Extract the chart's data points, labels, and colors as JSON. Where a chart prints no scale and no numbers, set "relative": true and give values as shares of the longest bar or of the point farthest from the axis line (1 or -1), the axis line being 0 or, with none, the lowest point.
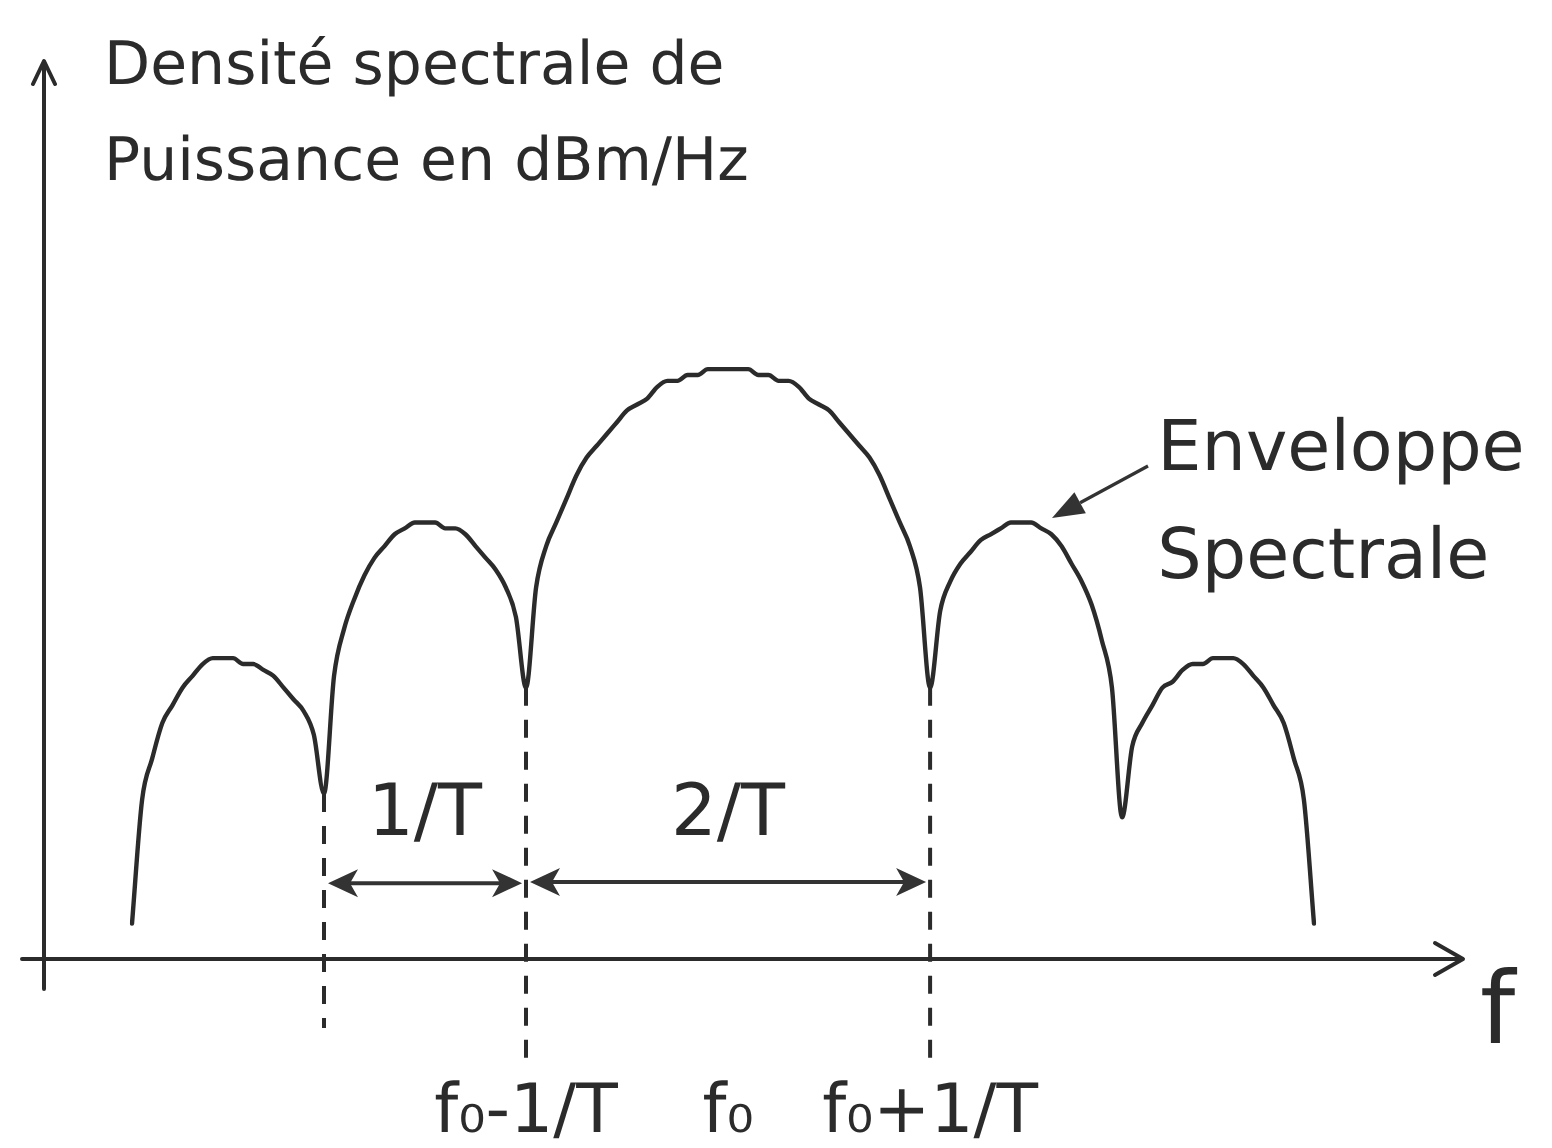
{
  "chart_data": {
    "type": "line",
    "xlabel": "f",
    "ylabel": "Densité spectrale de Puissance en dBm/Hz",
    "relative": true,
    "categories": [
      null,
      null,
      null,
      null,
      null,
      null,
      null,
      null,
      null,
      null,
      null,
      null,
      null,
      null,
      null,
      null,
      null,
      null,
      null,
      null,
      null,
      null,
      null,
      null,
      null,
      null,
      null,
      null,
      null,
      null,
      null,
      null,
      null,
      null,
      null,
      null,
      null,
      null,
      null,
      "f₀-1/T",
      null,
      null,
      null,
      null,
      null,
      null,
      null,
      null,
      null,
      null,
      null,
      null,
      null,
      null,
      null,
      null,
      null,
      null,
      null,
      "f₀",
      null,
      null,
      null,
      null,
      null,
      null,
      null,
      null,
      null,
      null,
      null,
      null,
      null,
      null,
      null,
      null,
      null,
      null,
      null,
      "f₀+1/T",
      null,
      null,
      null,
      null,
      null,
      null,
      null,
      null,
      null,
      null,
      null,
      null,
      null,
      null,
      null,
      null,
      null,
      null,
      null,
      null,
      null,
      null,
      null,
      null,
      null,
      null,
      null,
      null,
      null,
      null,
      null,
      null,
      null,
      null,
      null,
      null,
      null,
      null
    ],
    "series": [
      {
        "name": "Enveloppe Spectrale",
        "color": "#2b2b2b",
        "values": [
          0.06,
          0.27,
          0.34,
          0.4,
          0.43,
          0.46,
          0.48,
          0.5,
          0.51,
          0.51,
          0.51,
          0.5,
          0.5,
          0.49,
          0.48,
          0.46,
          0.44,
          0.42,
          0.38,
          0.28,
          0.48,
          0.56,
          0.61,
          0.65,
          0.68,
          0.7,
          0.72,
          0.73,
          0.74,
          0.74,
          0.74,
          0.73,
          0.73,
          0.72,
          0.7,
          0.68,
          0.66,
          0.63,
          0.58,
          0.46,
          0.63,
          0.7,
          0.74,
          0.78,
          0.82,
          0.85,
          0.87,
          0.89,
          0.91,
          0.93,
          0.94,
          0.95,
          0.97,
          0.98,
          0.98,
          0.99,
          0.99,
          1.0,
          1.0,
          1.0,
          1.0,
          1.0,
          0.99,
          0.99,
          0.98,
          0.98,
          0.97,
          0.95,
          0.94,
          0.93,
          0.91,
          0.89,
          0.87,
          0.85,
          0.82,
          0.78,
          0.74,
          0.7,
          0.63,
          0.46,
          0.59,
          0.64,
          0.67,
          0.69,
          0.71,
          0.72,
          0.73,
          0.74,
          0.74,
          0.74,
          0.73,
          0.72,
          0.7,
          0.67,
          0.64,
          0.6,
          0.54,
          0.46,
          0.24,
          0.36,
          0.4,
          0.43,
          0.46,
          0.47,
          0.49,
          0.5,
          0.5,
          0.51,
          0.51,
          0.51,
          0.5,
          0.48,
          0.46,
          0.43,
          0.4,
          0.34,
          0.27,
          0.06
        ]
      }
    ],
    "ref_lines": [
      {
        "axis": "x",
        "value": "f₀-1/T",
        "color": "#2b2b2b",
        "line_style": "dashed"
      },
      {
        "axis": "x",
        "value": "f₀+1/T",
        "color": "#2b2b2b",
        "line_style": "dashed"
      }
    ],
    "annotations": [
      "1/T",
      "2/T"
    ]
  }
}
